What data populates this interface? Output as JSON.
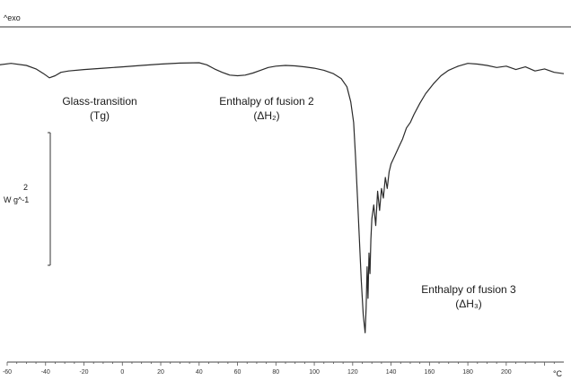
{
  "chart_data": {
    "type": "line",
    "header_label": "^exo",
    "xlabel": "°C",
    "ylabel": "",
    "scale_bar_label": "W g^-1",
    "scale_bar_value": "2",
    "xlim": [
      -60,
      230
    ],
    "ylim": [
      -20,
      1
    ],
    "x_ticks": [
      "-60",
      "-40",
      "-20",
      "0",
      "20",
      "40",
      "60",
      "80",
      "100",
      "120",
      "140",
      "160",
      "180",
      "200"
    ],
    "grid": false,
    "series": [
      {
        "x": [
          -64,
          -58,
          -50,
          -45,
          -41,
          -38,
          -35,
          -32,
          -28,
          -20,
          -10,
          0,
          10,
          20,
          30,
          40,
          44,
          48,
          52,
          56,
          60,
          64,
          68,
          72,
          76,
          80,
          85,
          90,
          95,
          100,
          105,
          110,
          114,
          117,
          119,
          120.5,
          121.5,
          122.5,
          123.5,
          124.5,
          125.5,
          126.5,
          127,
          127.5,
          128,
          128.5,
          129,
          129.5,
          130,
          131,
          132,
          133,
          134,
          135,
          136,
          137,
          138,
          139,
          140,
          142,
          144,
          146,
          148,
          150,
          152,
          155,
          158,
          162,
          166,
          170,
          175,
          180,
          185,
          190,
          195,
          200,
          205,
          210,
          215,
          220,
          225,
          230
        ],
        "y": [
          0.2,
          0.3,
          0.15,
          -0.1,
          -0.45,
          -0.75,
          -0.6,
          -0.35,
          -0.25,
          -0.15,
          -0.05,
          0.05,
          0.15,
          0.25,
          0.32,
          0.35,
          0.2,
          -0.1,
          -0.35,
          -0.55,
          -0.6,
          -0.55,
          -0.4,
          -0.2,
          0.0,
          0.1,
          0.15,
          0.12,
          0.05,
          -0.05,
          -0.2,
          -0.45,
          -0.8,
          -1.4,
          -2.5,
          -4.0,
          -6.5,
          -9.5,
          -12.5,
          -15.5,
          -18.0,
          -19.3,
          -17.5,
          -14.5,
          -16.8,
          -13.5,
          -15.0,
          -12.5,
          -11.0,
          -10.0,
          -11.5,
          -9.0,
          -10.4,
          -8.8,
          -9.5,
          -8.0,
          -8.8,
          -7.6,
          -7.0,
          -6.4,
          -5.8,
          -5.2,
          -4.4,
          -4.0,
          -3.4,
          -2.6,
          -1.9,
          -1.2,
          -0.6,
          -0.2,
          0.1,
          0.3,
          0.25,
          0.15,
          0.0,
          0.1,
          -0.15,
          0.05,
          -0.25,
          -0.1,
          -0.35,
          -0.45
        ]
      }
    ],
    "annotations": [
      {
        "text": "Glass-transition",
        "subtext": "(Tg)"
      },
      {
        "text": "Enthalpy of fusion 2",
        "subtext": "(ΔH₂)"
      },
      {
        "text": "Enthalpy of fusion 3",
        "subtext": "(ΔH₃)"
      }
    ]
  }
}
